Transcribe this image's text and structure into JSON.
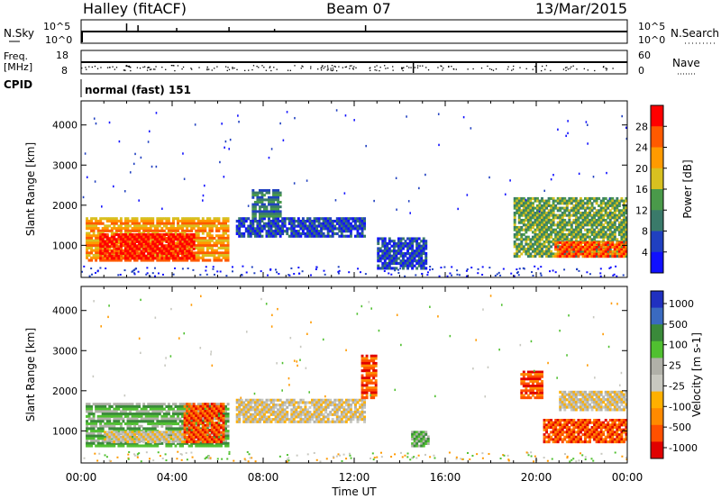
{
  "header": {
    "site": "Halley (fitACF)",
    "beam": "Beam 07",
    "date": "13/Mar/2015"
  },
  "strip_nsky": {
    "left_label": "N.Sky",
    "left_ticks": [
      "10^5",
      "10^0"
    ],
    "right_label": "N.Search",
    "right_ticks": [
      "10^5",
      "10^0"
    ]
  },
  "strip_freq": {
    "left_label_1": "Freq.",
    "left_label_2": "[MHz]",
    "left_ticks": [
      "18",
      "8"
    ],
    "right_label": "Nave",
    "right_ticks": [
      "60",
      "0"
    ]
  },
  "cpid": {
    "label": "CPID",
    "value": "normal (fast) 151"
  },
  "colors": {
    "power_scale": [
      "#1010ff",
      "#2040c0",
      "#3a7a6a",
      "#4a9a4a",
      "#d8c020",
      "#ff9a00",
      "#ff5a00",
      "#ff0000"
    ],
    "velocity_scale": [
      "#e00000",
      "#ff5000",
      "#ff8a00",
      "#ffb000",
      "#c8c8c0",
      "#b0b0a8",
      "#50c030",
      "#3a8a3a",
      "#3a6ac0",
      "#2030c0"
    ]
  },
  "chart_data": [
    {
      "type": "heatmap",
      "panel": "power",
      "ylabel": "Slant Range [km]",
      "yticks": [
        "1000",
        "2000",
        "3000",
        "4000"
      ],
      "ylim": [
        200,
        4600
      ],
      "xlim": [
        "00:00",
        "00:00"
      ],
      "colorbar_label": "Power [dB]",
      "colorbar_ticks": [
        "4",
        "8",
        "12",
        "16",
        "20",
        "24",
        "28"
      ],
      "colorbar_range": [
        0,
        32
      ],
      "regions": [
        {
          "t0": 0.2,
          "t1": 6.5,
          "r0": 600,
          "r1": 1700,
          "level": 22
        },
        {
          "t0": 0.8,
          "t1": 5.0,
          "r0": 650,
          "r1": 1300,
          "level": 30
        },
        {
          "t0": 6.8,
          "t1": 12.5,
          "r0": 1200,
          "r1": 1700,
          "level": 6
        },
        {
          "t0": 7.5,
          "t1": 8.8,
          "r0": 1700,
          "r1": 2400,
          "level": 10
        },
        {
          "t0": 13.0,
          "t1": 15.2,
          "r0": 400,
          "r1": 1200,
          "level": 5
        },
        {
          "t0": 19.0,
          "t1": 24.0,
          "r0": 700,
          "r1": 2200,
          "level": 14
        },
        {
          "t0": 20.8,
          "t1": 24.0,
          "r0": 700,
          "r1": 1100,
          "level": 24
        }
      ]
    },
    {
      "type": "heatmap",
      "panel": "velocity",
      "ylabel": "Slant Range [km]",
      "yticks": [
        "1000",
        "2000",
        "3000",
        "4000"
      ],
      "ylim": [
        200,
        4600
      ],
      "xlabel": "Time UT",
      "xticks": [
        "00:00",
        "04:00",
        "08:00",
        "12:00",
        "16:00",
        "20:00",
        "00:00"
      ],
      "colorbar_label": "Velocity [m s-1]",
      "colorbar_ticks": [
        "1000",
        "500",
        "100",
        "25",
        "-25",
        "-100",
        "-500",
        "-1000"
      ],
      "regions": [
        {
          "t0": 0.2,
          "t1": 6.5,
          "r0": 600,
          "r1": 1700,
          "velocity": 60
        },
        {
          "t0": 1.0,
          "t1": 4.5,
          "r0": 700,
          "r1": 1000,
          "velocity": 0
        },
        {
          "t0": 4.5,
          "t1": 6.3,
          "r0": 700,
          "r1": 1700,
          "velocity": -300
        },
        {
          "t0": 6.8,
          "t1": 12.5,
          "r0": 1200,
          "r1": 1800,
          "velocity": 0
        },
        {
          "t0": 12.3,
          "t1": 13.0,
          "r0": 1800,
          "r1": 2900,
          "velocity": -300
        },
        {
          "t0": 14.5,
          "t1": 15.3,
          "r0": 600,
          "r1": 1000,
          "velocity": 80
        },
        {
          "t0": 19.3,
          "t1": 20.3,
          "r0": 1800,
          "r1": 2500,
          "velocity": -300
        },
        {
          "t0": 20.3,
          "t1": 24.0,
          "r0": 700,
          "r1": 1300,
          "velocity": -250
        },
        {
          "t0": 21.0,
          "t1": 24.0,
          "r0": 1500,
          "r1": 2000,
          "velocity": 0
        }
      ]
    }
  ]
}
